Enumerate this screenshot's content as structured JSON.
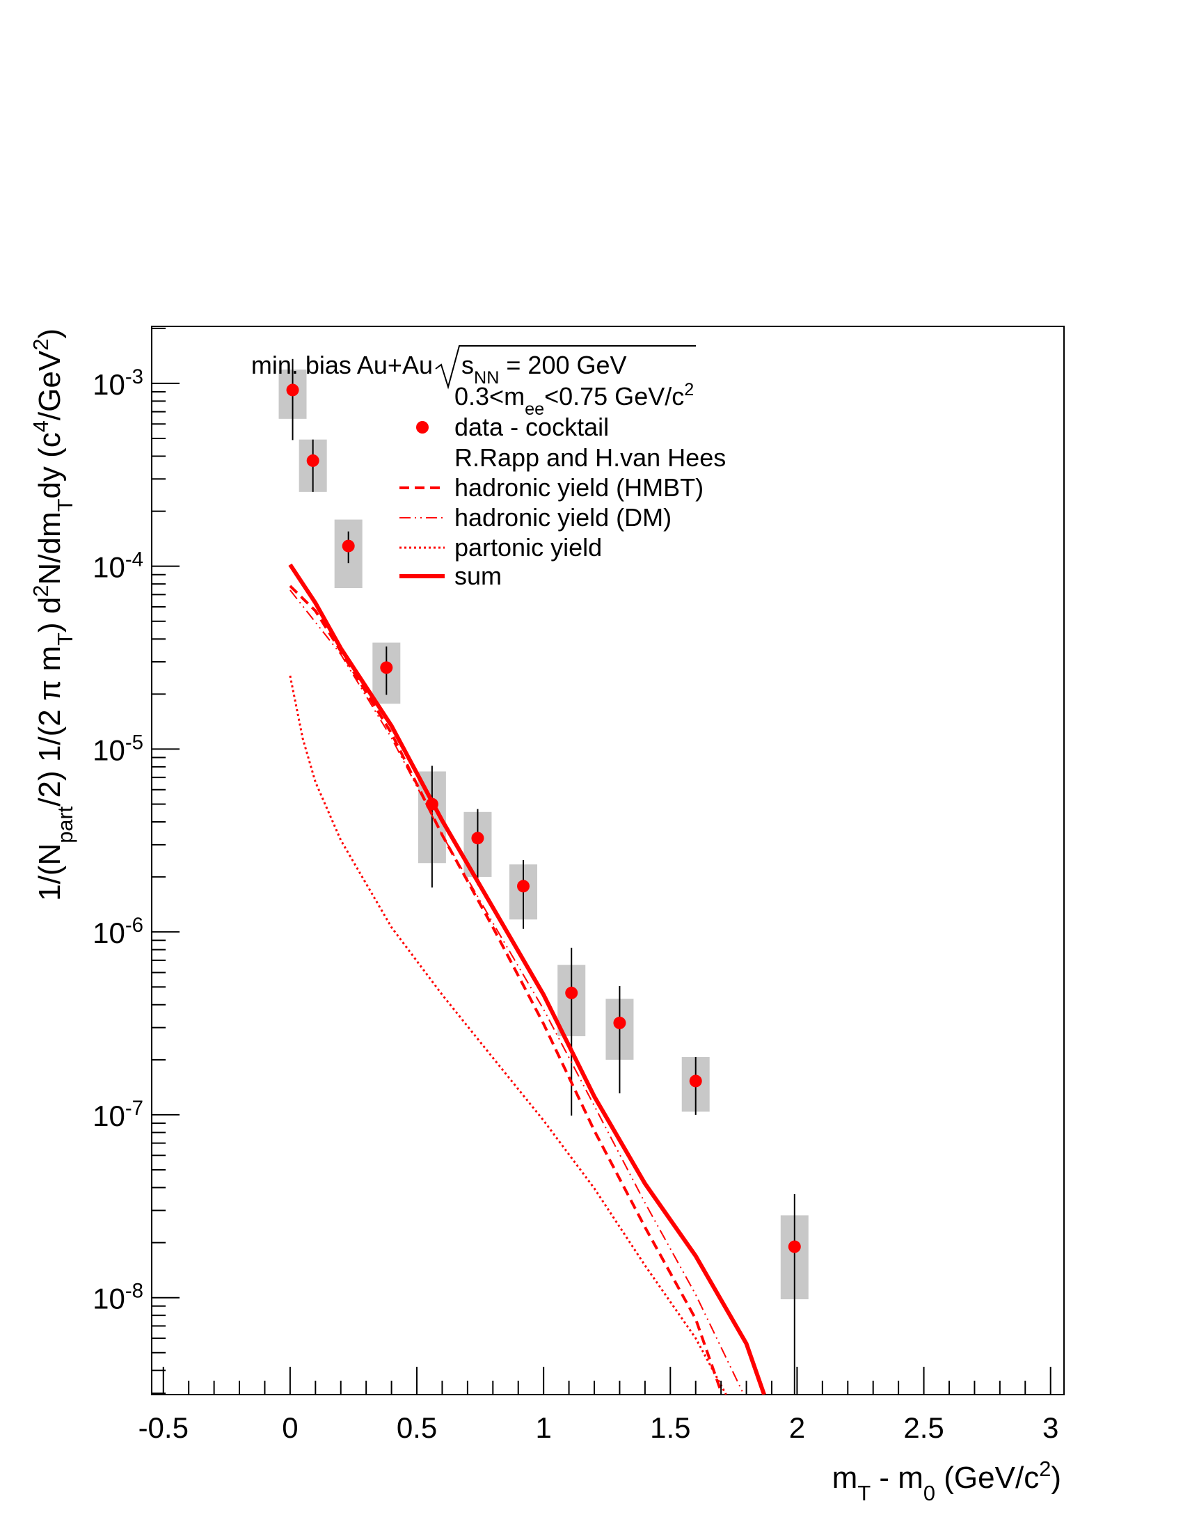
{
  "chart_data": {
    "type": "scatter",
    "xlim": [
      -0.546,
      3.053
    ],
    "ylim": [
      2.95e-09,
      0.00205
    ],
    "log_y": true,
    "xticks": [
      {
        "value": -0.5,
        "label": "-0.5"
      },
      0,
      0.5,
      1,
      1.5,
      2,
      2.5,
      3
    ],
    "xticks_minor": [
      -0.4,
      -0.3,
      -0.2,
      -0.1,
      0.1,
      0.2,
      0.3,
      0.4,
      0.6,
      0.7,
      0.8,
      0.9,
      1.1,
      1.2,
      1.3,
      1.4,
      1.6,
      1.7,
      1.8,
      1.9,
      2.1,
      2.2,
      2.3,
      2.4,
      2.6,
      2.7,
      2.8,
      2.9
    ],
    "yticks": [
      {
        "value": 1e-08,
        "label": "10",
        "exponent": "-8"
      },
      {
        "value": 1e-07,
        "label": "10",
        "exponent": "-7"
      },
      {
        "value": 1e-06,
        "label": "10",
        "exponent": "-6"
      },
      {
        "value": 1e-05,
        "label": "10",
        "exponent": "-5"
      },
      {
        "value": 0.0001,
        "label": "10",
        "exponent": "-4"
      },
      {
        "value": 0.001,
        "label": "10",
        "exponent": "-3"
      }
    ],
    "yticks_minor": [
      3e-09,
      4e-09,
      5e-09,
      6e-09,
      7e-09,
      8e-09,
      9e-09,
      2e-08,
      3e-08,
      4e-08,
      5e-08,
      6e-08,
      7e-08,
      8e-08,
      9e-08,
      2e-07,
      3e-07,
      4e-07,
      5e-07,
      6e-07,
      7e-07,
      8e-07,
      9e-07,
      2e-06,
      3e-06,
      4e-06,
      5e-06,
      6e-06,
      7e-06,
      8e-06,
      9e-06,
      2e-05,
      3e-05,
      4e-05,
      5e-05,
      6e-05,
      7e-05,
      8e-05,
      9e-05,
      0.0002,
      0.0003,
      0.0004,
      0.0005,
      0.0006,
      0.0007,
      0.0008,
      0.0009,
      0.002
    ],
    "x_label": [
      {
        "text": "m"
      },
      {
        "text": "T",
        "shift": "sub"
      },
      {
        "text": " - m"
      },
      {
        "text": "0",
        "shift": "sub"
      },
      {
        "text": " (GeV/c"
      },
      {
        "text": "2",
        "shift": "super"
      },
      {
        "text": ")"
      }
    ],
    "y_label": [
      {
        "text": "1/(N"
      },
      {
        "text": "part",
        "shift": "sub"
      },
      {
        "text": "/2) 1/(2 π m"
      },
      {
        "text": "T",
        "shift": "sub"
      },
      {
        "text": ") d"
      },
      {
        "text": "2",
        "shift": "super"
      },
      {
        "text": "N/dm"
      },
      {
        "text": "T",
        "shift": "sub"
      },
      {
        "text": "dy (c"
      },
      {
        "text": "4",
        "shift": "super"
      },
      {
        "text": "/GeV"
      },
      {
        "text": "2",
        "shift": "super"
      },
      {
        "text": ")"
      }
    ],
    "legend_header": {
      "prefix": "min. bias Au+Au",
      "radicand": [
        {
          "text": "s"
        },
        {
          "text": "NN",
          "shift": "sub"
        }
      ],
      "suffix": " = 200 GeV"
    },
    "legend_subheader": [
      {
        "text": "0.3<m"
      },
      {
        "text": "ee",
        "shift": "sub"
      },
      {
        "text": "<0.75 GeV/c"
      },
      {
        "text": "2",
        "shift": "super"
      }
    ],
    "legend_note": "R.Rapp and H.van Hees",
    "series": [
      {
        "name": "data - cocktail",
        "kind": "points",
        "color": "#ff0000",
        "sys_color": "#c8c8c8",
        "x": [
          0.01,
          0.09,
          0.23,
          0.38,
          0.56,
          0.74,
          0.92,
          1.11,
          1.3,
          1.6,
          1.99
        ],
        "values": [
          0.00092,
          0.000378,
          0.000129,
          2.79e-05,
          5e-06,
          3.26e-06,
          1.78e-06,
          4.64e-07,
          3.18e-07,
          1.53e-07,
          1.9e-08
        ],
        "err_high": [
          0.00136,
          0.000493,
          0.000155,
          3.64e-05,
          8.1e-06,
          4.7e-06,
          2.47e-06,
          8.2e-07,
          5.06e-07,
          2.07e-07,
          3.68e-08
        ],
        "err_low": [
          0.00049,
          0.000255,
          0.000104,
          1.98e-05,
          1.75e-06,
          1.8e-06,
          1.04e-06,
          9.9e-08,
          1.31e-07,
          1e-07,
          2.95e-09
        ],
        "sys_high": [
          0.00119,
          0.000493,
          0.00018,
          3.82e-05,
          7.55e-06,
          4.53e-06,
          2.34e-06,
          6.6e-07,
          4.31e-07,
          2.07e-07,
          2.82e-08
        ],
        "sys_low": [
          0.00064,
          0.000255,
          7.6e-05,
          1.77e-05,
          2.38e-06,
          2e-06,
          1.17e-06,
          2.69e-07,
          2e-07,
          1.04e-07,
          9.8e-09
        ]
      },
      {
        "name": "hadronic yield (HMBT)",
        "kind": "line",
        "style": "dashed",
        "color": "#ff0000",
        "x": [
          0,
          0.1,
          0.2,
          0.4,
          0.6,
          0.8,
          1.0,
          1.2,
          1.4,
          1.6,
          1.7
        ],
        "values": [
          7.8e-05,
          5.7e-05,
          3.43e-05,
          1.22e-05,
          3.39e-06,
          1.06e-06,
          3.14e-07,
          8.2e-08,
          2.43e-08,
          7.65e-09,
          3.07e-09
        ]
      },
      {
        "name": "hadronic yield (DM)",
        "kind": "line",
        "style": "dashdot",
        "color": "#ff0000",
        "x": [
          0,
          0.2,
          0.4,
          0.6,
          0.8,
          1.0,
          1.2,
          1.4,
          1.6,
          1.79
        ],
        "values": [
          7.4e-05,
          3.3e-05,
          1.15e-05,
          3.39e-06,
          1.12e-06,
          3.77e-07,
          1.12e-07,
          3.3e-08,
          1.04e-08,
          2.95e-09
        ]
      },
      {
        "name": "partonic yield",
        "kind": "line",
        "style": "dotted",
        "color": "#ff0000",
        "x": [
          0,
          0.05,
          0.1,
          0.2,
          0.4,
          0.6,
          0.8,
          1.0,
          1.2,
          1.4,
          1.6,
          1.72
        ],
        "values": [
          2.52e-05,
          1.14e-05,
          6.6e-06,
          3.18e-06,
          1.06e-06,
          4.53e-07,
          2.05e-07,
          9.3e-08,
          3.96e-08,
          1.5e-08,
          6e-09,
          2.95e-09
        ]
      },
      {
        "name": "sum",
        "kind": "line",
        "style": "solid",
        "color": "#ff0000",
        "x": [
          0,
          0.1,
          0.2,
          0.4,
          0.6,
          0.8,
          1.0,
          1.2,
          1.4,
          1.6,
          1.8,
          1.87
        ],
        "values": [
          0.000102,
          6.3e-05,
          3.56e-05,
          1.34e-05,
          4.06e-06,
          1.36e-06,
          4.53e-07,
          1.26e-07,
          4.2e-08,
          1.69e-08,
          5.6e-09,
          2.95e-09
        ]
      }
    ]
  }
}
